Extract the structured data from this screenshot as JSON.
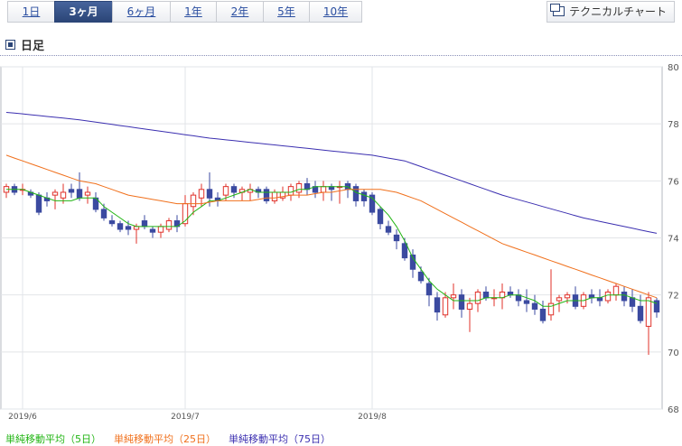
{
  "tabs": [
    {
      "label": "1日",
      "active": false
    },
    {
      "label": "3ヶ月",
      "active": true
    },
    {
      "label": "6ヶ月",
      "active": false
    },
    {
      "label": "1年",
      "active": false
    },
    {
      "label": "2年",
      "active": false
    },
    {
      "label": "5年",
      "active": false
    },
    {
      "label": "10年",
      "active": false
    }
  ],
  "technical_chart_label": "テクニカルチャート",
  "heading": "日足",
  "colors": {
    "up": "#e0312a",
    "down": "#3b4aa0",
    "ma5": "#22b514",
    "ma25": "#f0701c",
    "ma75": "#3b2fb0"
  },
  "chart_data": {
    "type": "candlestick",
    "ylim": [
      68,
      80
    ],
    "yticks": [
      68,
      70,
      72,
      74,
      76,
      78,
      80
    ],
    "xtick_labels": [
      {
        "label": "2019/6",
        "index": 2
      },
      {
        "label": "2019/7",
        "index": 22
      },
      {
        "label": "2019/8",
        "index": 45
      }
    ],
    "candles": [
      [
        75.6,
        75.9,
        75.4,
        75.8
      ],
      [
        75.8,
        75.9,
        75.5,
        75.6
      ],
      [
        75.7,
        75.9,
        75.5,
        75.7
      ],
      [
        75.6,
        75.7,
        75.4,
        75.5
      ],
      [
        75.5,
        75.6,
        74.8,
        74.9
      ],
      [
        75.4,
        75.6,
        75.1,
        75.3
      ],
      [
        75.5,
        75.7,
        75.0,
        75.6
      ],
      [
        75.4,
        75.9,
        75.2,
        75.6
      ],
      [
        75.7,
        75.9,
        75.4,
        75.6
      ],
      [
        75.7,
        76.3,
        75.3,
        75.4
      ],
      [
        75.5,
        75.8,
        75.2,
        75.6
      ],
      [
        75.4,
        75.6,
        74.9,
        75.0
      ],
      [
        75.0,
        75.2,
        74.6,
        74.7
      ],
      [
        74.6,
        74.8,
        74.4,
        74.5
      ],
      [
        74.5,
        74.6,
        74.2,
        74.3
      ],
      [
        74.4,
        74.6,
        74.1,
        74.3
      ],
      [
        74.3,
        74.5,
        73.8,
        74.4
      ],
      [
        74.6,
        74.8,
        74.3,
        74.4
      ],
      [
        74.3,
        74.4,
        74.0,
        74.2
      ],
      [
        74.2,
        74.5,
        74.0,
        74.4
      ],
      [
        74.3,
        74.7,
        74.2,
        74.6
      ],
      [
        74.6,
        74.8,
        74.2,
        74.4
      ],
      [
        74.5,
        75.5,
        74.4,
        75.2
      ],
      [
        75.1,
        75.6,
        74.8,
        75.5
      ],
      [
        75.4,
        75.9,
        75.1,
        75.7
      ],
      [
        75.7,
        76.3,
        75.1,
        75.4
      ],
      [
        75.4,
        75.6,
        75.1,
        75.3
      ],
      [
        75.5,
        75.9,
        75.3,
        75.8
      ],
      [
        75.8,
        75.9,
        75.4,
        75.6
      ],
      [
        75.6,
        75.8,
        75.3,
        75.7
      ],
      [
        75.6,
        75.9,
        75.3,
        75.7
      ],
      [
        75.7,
        75.8,
        75.4,
        75.6
      ],
      [
        75.7,
        75.8,
        75.2,
        75.3
      ],
      [
        75.3,
        75.7,
        75.2,
        75.6
      ],
      [
        75.4,
        75.8,
        75.3,
        75.6
      ],
      [
        75.5,
        75.9,
        75.3,
        75.8
      ],
      [
        75.6,
        76.0,
        75.4,
        75.9
      ],
      [
        75.9,
        76.1,
        75.5,
        75.7
      ],
      [
        75.8,
        76.0,
        75.4,
        75.6
      ],
      [
        75.6,
        76.0,
        75.3,
        75.8
      ],
      [
        75.8,
        75.9,
        75.3,
        75.7
      ],
      [
        75.8,
        76.0,
        75.2,
        75.8
      ],
      [
        75.9,
        76.0,
        75.4,
        75.7
      ],
      [
        75.8,
        75.9,
        75.1,
        75.3
      ],
      [
        75.6,
        75.7,
        75.1,
        75.3
      ],
      [
        75.5,
        75.6,
        74.8,
        74.9
      ],
      [
        75.0,
        75.1,
        74.3,
        74.5
      ],
      [
        74.4,
        74.6,
        74.1,
        74.2
      ],
      [
        74.1,
        74.3,
        73.6,
        73.9
      ],
      [
        73.8,
        74.0,
        73.2,
        73.3
      ],
      [
        73.4,
        73.6,
        72.6,
        72.9
      ],
      [
        72.8,
        73.0,
        72.4,
        72.5
      ],
      [
        72.4,
        72.6,
        71.6,
        72.0
      ],
      [
        71.9,
        72.1,
        71.1,
        71.4
      ],
      [
        71.3,
        72.1,
        71.2,
        71.9
      ],
      [
        71.9,
        72.4,
        71.5,
        72.0
      ],
      [
        72.0,
        72.2,
        71.2,
        71.5
      ],
      [
        71.5,
        71.9,
        70.7,
        71.7
      ],
      [
        71.7,
        72.2,
        71.4,
        72.1
      ],
      [
        72.1,
        72.3,
        71.8,
        71.9
      ],
      [
        71.9,
        72.2,
        71.6,
        71.9
      ],
      [
        71.9,
        72.4,
        71.5,
        72.1
      ],
      [
        72.1,
        72.3,
        71.9,
        72.0
      ],
      [
        72.0,
        72.2,
        71.6,
        71.8
      ],
      [
        71.8,
        72.2,
        71.4,
        71.7
      ],
      [
        71.7,
        72.0,
        71.3,
        71.5
      ],
      [
        71.5,
        71.8,
        71.0,
        71.1
      ],
      [
        71.3,
        72.9,
        71.1,
        71.7
      ],
      [
        71.8,
        72.0,
        71.4,
        71.9
      ],
      [
        71.9,
        72.1,
        71.7,
        72.0
      ],
      [
        72.0,
        72.3,
        71.5,
        71.6
      ],
      [
        71.6,
        72.1,
        71.5,
        72.0
      ],
      [
        72.0,
        72.2,
        71.7,
        71.9
      ],
      [
        71.9,
        72.2,
        71.6,
        71.8
      ],
      [
        71.8,
        72.2,
        71.7,
        72.1
      ],
      [
        72.0,
        72.4,
        71.8,
        72.3
      ],
      [
        72.1,
        72.3,
        71.6,
        71.8
      ],
      [
        71.9,
        72.2,
        71.4,
        71.6
      ],
      [
        71.6,
        72.0,
        71.0,
        71.1
      ],
      [
        70.9,
        72.1,
        69.9,
        71.9
      ],
      [
        71.8,
        71.9,
        71.2,
        71.4
      ]
    ],
    "series": [
      {
        "name": "単純移動平均（5日）",
        "color": "#22b514",
        "values": [
          75.7,
          75.7,
          75.7,
          75.6,
          75.5,
          75.4,
          75.3,
          75.3,
          75.3,
          75.4,
          75.4,
          75.4,
          75.1,
          74.9,
          74.7,
          74.5,
          74.4,
          74.4,
          74.4,
          74.4,
          74.4,
          74.4,
          74.6,
          74.9,
          75.1,
          75.3,
          75.3,
          75.4,
          75.5,
          75.6,
          75.7,
          75.6,
          75.6,
          75.6,
          75.6,
          75.6,
          75.7,
          75.7,
          75.8,
          75.8,
          75.8,
          75.8,
          75.8,
          75.6,
          75.5,
          75.4,
          75.1,
          74.8,
          74.4,
          73.9,
          73.3,
          72.9,
          72.5,
          72.2,
          72.0,
          71.8,
          71.8,
          71.8,
          71.8,
          71.9,
          71.9,
          71.9,
          72.0,
          72.0,
          71.9,
          71.8,
          71.6,
          71.6,
          71.7,
          71.8,
          71.8,
          71.8,
          71.9,
          71.9,
          72.0,
          72.0,
          72.0,
          71.9,
          71.8,
          71.8,
          71.7
        ]
      },
      {
        "name": "単純移動平均（25日）",
        "color": "#f0701c",
        "values": [
          76.9,
          76.8,
          76.7,
          76.6,
          76.5,
          76.4,
          76.3,
          76.2,
          76.1,
          76.0,
          75.95,
          75.9,
          75.8,
          75.7,
          75.6,
          75.5,
          75.45,
          75.4,
          75.35,
          75.3,
          75.25,
          75.2,
          75.2,
          75.2,
          75.2,
          75.25,
          75.3,
          75.3,
          75.3,
          75.3,
          75.3,
          75.35,
          75.4,
          75.4,
          75.45,
          75.5,
          75.5,
          75.5,
          75.55,
          75.6,
          75.6,
          75.65,
          75.7,
          75.7,
          75.7,
          75.7,
          75.7,
          75.65,
          75.6,
          75.5,
          75.4,
          75.3,
          75.15,
          75.0,
          74.85,
          74.7,
          74.55,
          74.4,
          74.25,
          74.1,
          73.95,
          73.8,
          73.7,
          73.6,
          73.5,
          73.4,
          73.3,
          73.2,
          73.1,
          73.0,
          72.9,
          72.8,
          72.7,
          72.6,
          72.5,
          72.4,
          72.3,
          72.2,
          72.1,
          72.0,
          71.9
        ]
      },
      {
        "name": "単純移動平均（75日）",
        "color": "#3b2fb0",
        "values": [
          78.4,
          78.38,
          78.35,
          78.32,
          78.29,
          78.26,
          78.23,
          78.2,
          78.17,
          78.14,
          78.1,
          78.06,
          78.02,
          77.98,
          77.94,
          77.9,
          77.86,
          77.82,
          77.78,
          77.74,
          77.7,
          77.66,
          77.62,
          77.58,
          77.54,
          77.5,
          77.47,
          77.44,
          77.41,
          77.38,
          77.35,
          77.32,
          77.29,
          77.26,
          77.23,
          77.2,
          77.17,
          77.14,
          77.11,
          77.08,
          77.05,
          77.02,
          76.99,
          76.96,
          76.93,
          76.9,
          76.85,
          76.8,
          76.75,
          76.7,
          76.6,
          76.5,
          76.4,
          76.3,
          76.2,
          76.1,
          76.0,
          75.9,
          75.8,
          75.7,
          75.6,
          75.5,
          75.42,
          75.34,
          75.26,
          75.18,
          75.1,
          75.02,
          74.94,
          74.86,
          74.78,
          74.7,
          74.64,
          74.58,
          74.52,
          74.46,
          74.4,
          74.34,
          74.28,
          74.22,
          74.16
        ]
      }
    ]
  },
  "legend": [
    {
      "label": "単純移動平均（5日）",
      "color": "#22b514"
    },
    {
      "label": "単純移動平均（25日）",
      "color": "#f0701c"
    },
    {
      "label": "単純移動平均（75日）",
      "color": "#3b2fb0"
    }
  ]
}
